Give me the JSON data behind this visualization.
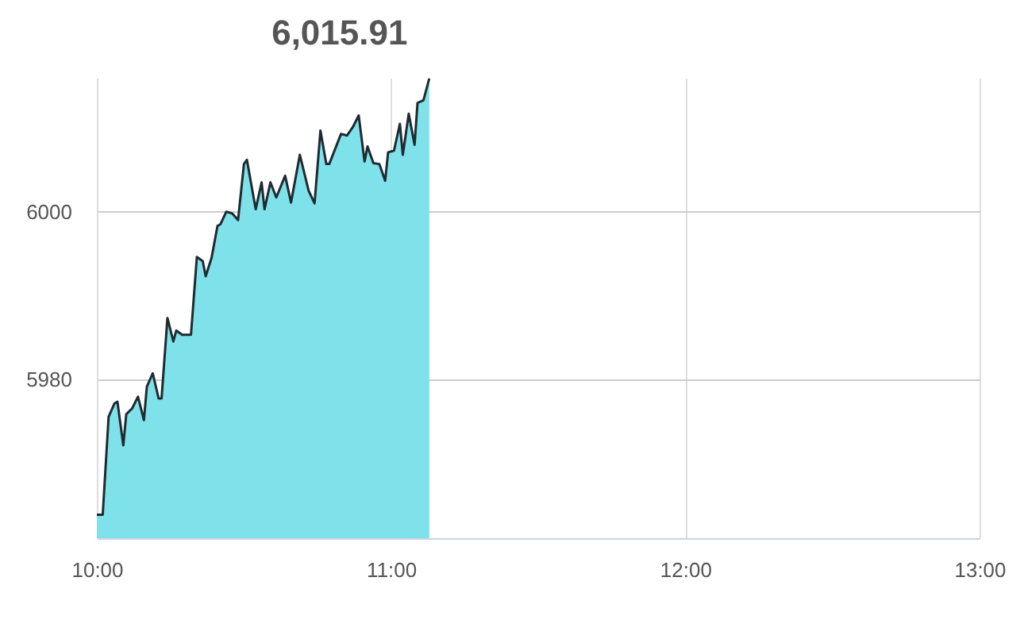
{
  "chart_data": {
    "type": "area",
    "title": "6,015.91",
    "x": [
      10.0,
      10.02,
      10.04,
      10.06,
      10.07,
      10.09,
      10.1,
      10.12,
      10.14,
      10.16,
      10.17,
      10.19,
      10.21,
      10.22,
      10.24,
      10.26,
      10.27,
      10.29,
      10.32,
      10.34,
      10.36,
      10.37,
      10.39,
      10.41,
      10.42,
      10.44,
      10.46,
      10.48,
      10.5,
      10.51,
      10.54,
      10.56,
      10.57,
      10.59,
      10.61,
      10.64,
      10.66,
      10.69,
      10.72,
      10.74,
      10.76,
      10.78,
      10.79,
      10.83,
      10.85,
      10.87,
      10.89,
      10.91,
      10.92,
      10.94,
      10.96,
      10.98,
      10.99,
      11.01,
      11.03,
      11.04,
      11.06,
      11.08,
      11.09,
      11.11,
      11.13
    ],
    "series": [
      {
        "color": "#7fe1ea",
        "values": [
          5963.8,
          5963.8,
          5975.5,
          5977.1,
          5977.3,
          5972.1,
          5975.8,
          5976.5,
          5977.9,
          5975.1,
          5979.1,
          5980.7,
          5977.7,
          5977.7,
          5987.3,
          5984.5,
          5985.8,
          5985.3,
          5985.3,
          5994.6,
          5994.1,
          5992.3,
          5994.5,
          5998.3,
          5998.5,
          6000.0,
          5999.8,
          5999.0,
          6005.7,
          6006.2,
          6000.3,
          6003.5,
          6000.3,
          6003.5,
          6001.7,
          6004.3,
          6001.1,
          6006.8,
          6002.5,
          6001.0,
          6009.7,
          6005.7,
          6005.7,
          6009.3,
          6009.1,
          6010.1,
          6011.5,
          6006.0,
          6007.8,
          6005.8,
          6005.7,
          6003.7,
          6007.1,
          6007.3,
          6010.5,
          6006.8,
          6011.7,
          6008.0,
          6013.0,
          6013.3,
          6015.91
        ]
      }
    ],
    "xlim": [
      10,
      13
    ],
    "xticks": [
      {
        "value": 10,
        "label": "10:00"
      },
      {
        "value": 11,
        "label": "11:00"
      },
      {
        "value": 12,
        "label": "12:00"
      },
      {
        "value": 13,
        "label": "13:00"
      }
    ],
    "ylim": [
      5961,
      6016
    ],
    "yticks": [
      5980,
      6000
    ],
    "grid": true
  }
}
